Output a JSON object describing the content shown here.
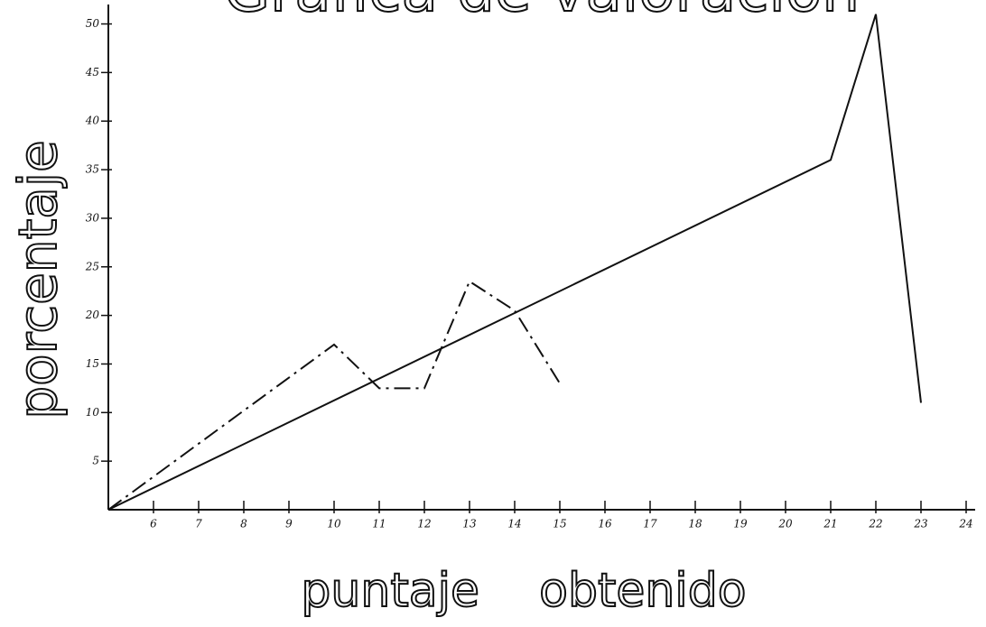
{
  "chart_data": {
    "type": "line",
    "title": "Grafica de valoracion",
    "xlabel": "puntaje    obtenido",
    "ylabel": "porcentaje",
    "xlim": [
      5,
      24.2
    ],
    "ylim": [
      0,
      52
    ],
    "xticks": [
      6,
      7,
      8,
      9,
      10,
      11,
      12,
      13,
      14,
      15,
      16,
      17,
      18,
      19,
      20,
      21,
      22,
      23,
      24
    ],
    "yticks": [
      5,
      10,
      15,
      20,
      25,
      30,
      35,
      40,
      45,
      50
    ],
    "series": [
      {
        "color": "#111111",
        "style": "solid",
        "x": [
          5,
          21,
          22,
          23
        ],
        "values": [
          0,
          36,
          51,
          11
        ]
      },
      {
        "color": "#111111",
        "style": "dashdot",
        "x": [
          5,
          10,
          11,
          12,
          13,
          14,
          15
        ],
        "values": [
          0,
          17,
          12.5,
          12.5,
          23.5,
          20.5,
          13
        ]
      }
    ]
  }
}
